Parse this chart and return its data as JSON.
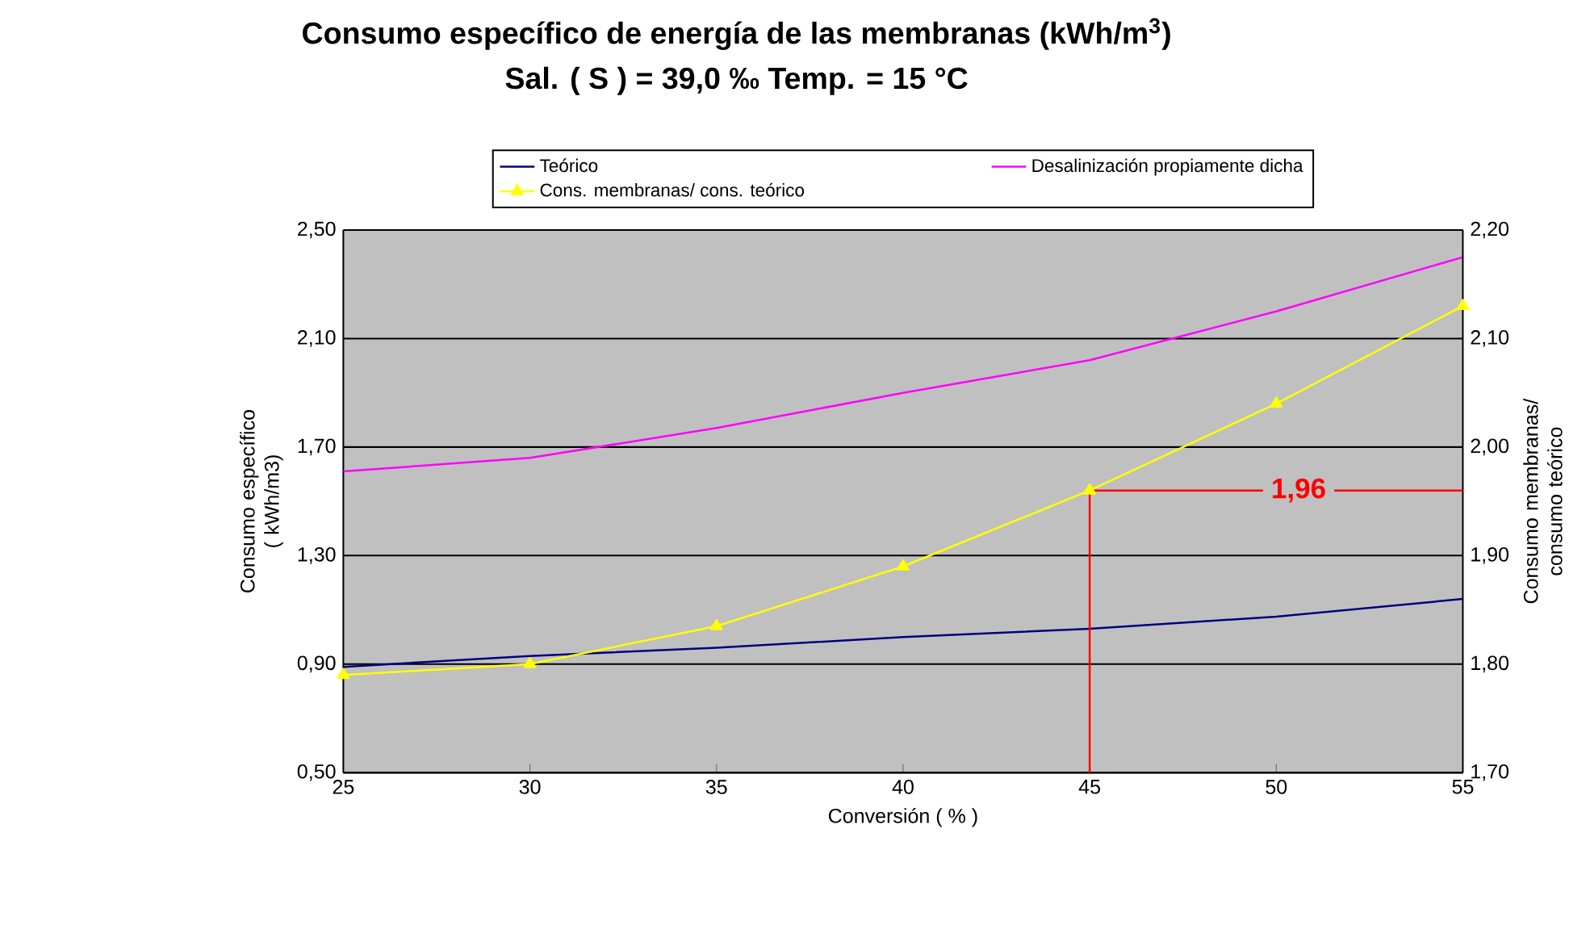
{
  "chart_data": {
    "type": "line",
    "title": "Consumo específico de energía de las membranas (kWh/m$^{3}$)",
    "subtitle": "Sal. ( S ) = 39,0 ‰  Temp. = 15 °C",
    "xlabel": "Conversión ( % )",
    "ylabel": "Consumo específico ( kWh/m3)",
    "y2label": "Consumo membranas/ consumo teórico",
    "x": [
      25,
      30,
      35,
      40,
      45,
      50,
      55
    ],
    "series": [
      {
        "name": "Teórico",
        "color": "#000080",
        "values": [
          0.89,
          0.93,
          0.96,
          1.0,
          1.03,
          1.075,
          1.14
        ]
      },
      {
        "name": "Desalinización propiamente dicha",
        "color": "#ff00ff",
        "values": [
          1.61,
          1.66,
          1.77,
          1.9,
          2.02,
          2.2,
          2.4
        ]
      },
      {
        "name": "Cons. membranas/ cons. teórico",
        "color": "#ffff00",
        "axis": "y2",
        "marker": "triangle",
        "values": [
          1.79,
          1.8,
          1.835,
          1.89,
          1.96,
          2.04,
          2.13
        ]
      }
    ],
    "xlim": [
      25,
      55
    ],
    "xticks": [
      25,
      30,
      35,
      40,
      45,
      50,
      55
    ],
    "ylim": [
      0.5,
      2.5
    ],
    "yticks": [
      {
        "value": 0.5,
        "label": "0,50"
      },
      {
        "value": 0.9,
        "label": "0,90"
      },
      {
        "value": 1.3,
        "label": "1,30"
      },
      {
        "value": 1.7,
        "label": "1,70"
      },
      {
        "value": 2.1,
        "label": "2,10"
      },
      {
        "value": 2.5,
        "label": "2,50"
      }
    ],
    "y2lim": [
      1.7,
      2.2
    ],
    "y2ticks": [
      {
        "value": 1.7,
        "label": "1,70"
      },
      {
        "value": 1.8,
        "label": "1,80"
      },
      {
        "value": 1.9,
        "label": "1,90"
      },
      {
        "value": 2.0,
        "label": "2,00"
      },
      {
        "value": 2.1,
        "label": "2,10"
      },
      {
        "value": 2.2,
        "label": "2,20"
      }
    ],
    "ref_lines": [
      {
        "axis": "x",
        "value": 45,
        "color": "#ff0000"
      },
      {
        "axis": "y2",
        "value": 1.96,
        "label": "1,96",
        "color": "#ff0000"
      }
    ],
    "grid": "y",
    "legend": "top"
  }
}
